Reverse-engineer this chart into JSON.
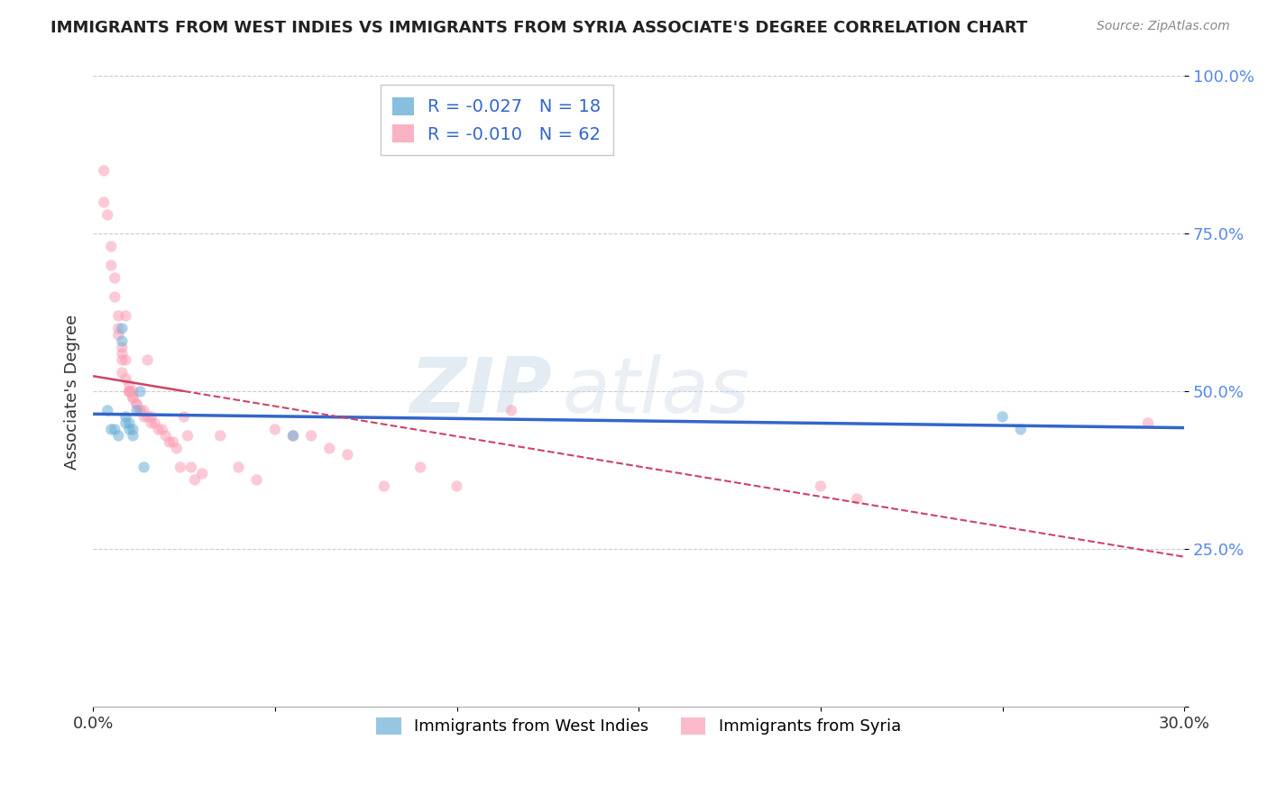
{
  "title": "IMMIGRANTS FROM WEST INDIES VS IMMIGRANTS FROM SYRIA ASSOCIATE'S DEGREE CORRELATION CHART",
  "source": "Source: ZipAtlas.com",
  "ylabel": "Associate's Degree",
  "xlim": [
    0.0,
    0.3
  ],
  "ylim": [
    0.0,
    1.0
  ],
  "ytick_vals": [
    0.0,
    0.25,
    0.5,
    0.75,
    1.0
  ],
  "ytick_labels": [
    "",
    "25.0%",
    "50.0%",
    "75.0%",
    "100.0%"
  ],
  "xtick_vals": [
    0.0,
    0.05,
    0.1,
    0.15,
    0.2,
    0.25,
    0.3
  ],
  "xtick_labels": [
    "0.0%",
    "",
    "",
    "",
    "",
    "",
    "30.0%"
  ],
  "west_indies_x": [
    0.004,
    0.005,
    0.006,
    0.007,
    0.008,
    0.008,
    0.009,
    0.009,
    0.01,
    0.01,
    0.011,
    0.011,
    0.012,
    0.013,
    0.014,
    0.055,
    0.25,
    0.255
  ],
  "west_indies_y": [
    0.47,
    0.44,
    0.44,
    0.43,
    0.6,
    0.58,
    0.46,
    0.45,
    0.45,
    0.44,
    0.44,
    0.43,
    0.47,
    0.5,
    0.38,
    0.43,
    0.46,
    0.44
  ],
  "syria_x": [
    0.003,
    0.003,
    0.004,
    0.005,
    0.005,
    0.006,
    0.006,
    0.007,
    0.007,
    0.007,
    0.008,
    0.008,
    0.008,
    0.008,
    0.009,
    0.009,
    0.009,
    0.01,
    0.01,
    0.01,
    0.01,
    0.011,
    0.011,
    0.011,
    0.012,
    0.012,
    0.013,
    0.013,
    0.014,
    0.014,
    0.015,
    0.015,
    0.016,
    0.016,
    0.017,
    0.018,
    0.019,
    0.02,
    0.021,
    0.022,
    0.023,
    0.024,
    0.025,
    0.026,
    0.027,
    0.028,
    0.03,
    0.035,
    0.04,
    0.045,
    0.05,
    0.055,
    0.06,
    0.065,
    0.07,
    0.08,
    0.09,
    0.1,
    0.115,
    0.2,
    0.21,
    0.29
  ],
  "syria_y": [
    0.85,
    0.8,
    0.78,
    0.73,
    0.7,
    0.68,
    0.65,
    0.62,
    0.6,
    0.59,
    0.57,
    0.56,
    0.55,
    0.53,
    0.62,
    0.55,
    0.52,
    0.51,
    0.5,
    0.5,
    0.5,
    0.5,
    0.49,
    0.49,
    0.48,
    0.48,
    0.47,
    0.47,
    0.47,
    0.46,
    0.55,
    0.46,
    0.46,
    0.45,
    0.45,
    0.44,
    0.44,
    0.43,
    0.42,
    0.42,
    0.41,
    0.38,
    0.46,
    0.43,
    0.38,
    0.36,
    0.37,
    0.43,
    0.38,
    0.36,
    0.44,
    0.43,
    0.43,
    0.41,
    0.4,
    0.35,
    0.38,
    0.35,
    0.47,
    0.35,
    0.33,
    0.45
  ],
  "west_indies_color": "#6baed6",
  "syria_color": "#fa9fb5",
  "west_indies_line_color": "#3366cc",
  "syria_line_color": "#cc4466",
  "watermark_text": "ZIP",
  "watermark_text2": "atlas",
  "marker_size": 80,
  "marker_alpha": 0.55,
  "background_color": "#ffffff",
  "grid_color": "#cccccc",
  "wi_legend_label": "R = -0.027   N = 18",
  "sy_legend_label": "R = -0.010   N = 62",
  "bottom_wi_label": "Immigrants from West Indies",
  "bottom_sy_label": "Immigrants from Syria"
}
